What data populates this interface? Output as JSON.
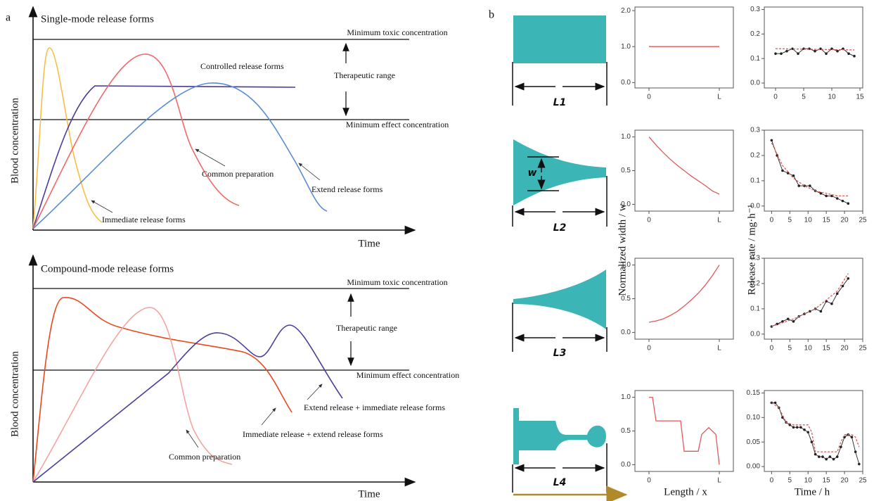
{
  "panel_a": {
    "label": "a",
    "top": {
      "title": "Single-mode release forms",
      "toxic": "Minimum toxic concentration",
      "range": "Therapeutic range",
      "effect": "Minimum effect concentration",
      "labels": [
        "Controlled release forms",
        "Common preparation",
        "Extend release forms",
        "Immediate release forms"
      ],
      "y_label": "Blood concentration",
      "x_label": "Time"
    },
    "bottom": {
      "title": "Compound-mode release forms",
      "toxic": "Minimum toxic concentration",
      "range": "Therapeutic range",
      "effect": "Minimum effect concentration",
      "labels": [
        "Extend release + immediate release forms",
        "Immediate release + extend release forms",
        "Common preparation"
      ],
      "y_label": "Blood concentration",
      "x_label": "Time"
    }
  },
  "panel_b": {
    "label": "b",
    "shapes": [
      "L1",
      "L2",
      "L3",
      "L4"
    ],
    "w_label": "w",
    "y_label_left": "Normalized width / w",
    "y_label_right": "Release rate / mg·h⁻¹",
    "x_label_left": "Length / x",
    "x_label_right": "Time / h"
  },
  "chart_data": [
    {
      "type": "line",
      "x": [
        0,
        1
      ],
      "values": [
        1.0,
        1.0
      ],
      "color": "#e05a5a",
      "xlim": [
        -0.2,
        1.2
      ],
      "ylim": [
        -0.15,
        2.1
      ],
      "xticks": [
        0,
        {
          "value": 1,
          "label": "L"
        }
      ],
      "yticks": [
        {
          "value": 0,
          "label": "0.0"
        },
        {
          "value": 1,
          "label": "1.0"
        },
        {
          "value": 2,
          "label": "2.0"
        }
      ]
    },
    {
      "type": "line",
      "xlim": [
        -2,
        15.5
      ],
      "ylim": [
        -0.02,
        0.31
      ],
      "xticks": [
        0,
        5,
        10,
        15
      ],
      "yticks": [
        {
          "value": 0,
          "label": "0.0"
        },
        0.1,
        0.2,
        0.3
      ],
      "series": [
        {
          "color": "#222222",
          "markers": true,
          "x": [
            0,
            1,
            2,
            3,
            4,
            5,
            6,
            7,
            8,
            9,
            10,
            11,
            12,
            13,
            14
          ],
          "values": [
            0.12,
            0.12,
            0.13,
            0.14,
            0.12,
            0.14,
            0.14,
            0.13,
            0.14,
            0.12,
            0.14,
            0.13,
            0.14,
            0.12,
            0.11
          ]
        },
        {
          "color": "#e05a5a",
          "dashed": true,
          "x": [
            0,
            14
          ],
          "values": [
            0.14,
            0.135
          ]
        }
      ]
    },
    {
      "type": "line",
      "x": [
        0,
        0.1,
        0.2,
        0.3,
        0.4,
        0.5,
        0.6,
        0.7,
        0.8,
        0.9,
        1
      ],
      "values": [
        1.0,
        0.88,
        0.77,
        0.67,
        0.58,
        0.5,
        0.42,
        0.35,
        0.28,
        0.2,
        0.15
      ],
      "color": "#e05a5a",
      "xlim": [
        -0.2,
        1.2
      ],
      "ylim": [
        -0.1,
        1.1
      ],
      "xticks": [
        0,
        {
          "value": 1,
          "label": "L"
        }
      ],
      "yticks": [
        {
          "value": 0,
          "label": "0.0"
        },
        0.5,
        {
          "value": 1,
          "label": "1.0"
        }
      ]
    },
    {
      "type": "line",
      "xlim": [
        -2,
        25
      ],
      "ylim": [
        -0.02,
        0.3
      ],
      "xticks": [
        0,
        5,
        10,
        15,
        20,
        25
      ],
      "yticks": [
        {
          "value": 0,
          "label": "0.0"
        },
        0.1,
        0.2,
        0.3
      ],
      "series": [
        {
          "color": "#222222",
          "markers": true,
          "x": [
            0,
            1.5,
            3,
            4.5,
            6,
            7.5,
            9,
            10.5,
            12,
            13.5,
            15,
            16.5,
            18,
            19.5,
            21
          ],
          "values": [
            0.26,
            0.2,
            0.14,
            0.13,
            0.12,
            0.08,
            0.08,
            0.08,
            0.06,
            0.05,
            0.04,
            0.04,
            0.03,
            0.02,
            0.01
          ]
        },
        {
          "color": "#e05a5a",
          "dashed": true,
          "x": [
            0,
            3,
            6,
            9,
            12,
            15,
            18,
            21
          ],
          "values": [
            0.25,
            0.16,
            0.11,
            0.08,
            0.06,
            0.05,
            0.04,
            0.04
          ]
        }
      ]
    },
    {
      "type": "line",
      "x": [
        0,
        0.1,
        0.2,
        0.3,
        0.4,
        0.5,
        0.6,
        0.7,
        0.8,
        0.9,
        1
      ],
      "values": [
        0.15,
        0.17,
        0.2,
        0.25,
        0.31,
        0.39,
        0.48,
        0.58,
        0.7,
        0.84,
        1.0
      ],
      "color": "#e05a5a",
      "xlim": [
        -0.2,
        1.2
      ],
      "ylim": [
        -0.1,
        1.1
      ],
      "xticks": [
        0,
        {
          "value": 1,
          "label": "L"
        }
      ],
      "yticks": [
        {
          "value": 0,
          "label": "0.0"
        },
        0.5,
        {
          "value": 1,
          "label": "1.0"
        }
      ]
    },
    {
      "type": "line",
      "xlim": [
        -2,
        25
      ],
      "ylim": [
        -0.02,
        0.3
      ],
      "xticks": [
        0,
        5,
        10,
        15,
        20,
        25
      ],
      "yticks": [
        {
          "value": 0,
          "label": "0.0"
        },
        0.1,
        0.2,
        0.3
      ],
      "series": [
        {
          "color": "#222222",
          "markers": true,
          "x": [
            0,
            1.5,
            3,
            4.5,
            6,
            7.5,
            9,
            10.5,
            12,
            13.5,
            15,
            16.5,
            18,
            19.5,
            21
          ],
          "values": [
            0.03,
            0.04,
            0.05,
            0.06,
            0.05,
            0.07,
            0.08,
            0.09,
            0.1,
            0.09,
            0.13,
            0.12,
            0.16,
            0.19,
            0.22
          ]
        },
        {
          "color": "#e05a5a",
          "dashed": true,
          "x": [
            0,
            6,
            12,
            18,
            21
          ],
          "values": [
            0.03,
            0.06,
            0.1,
            0.17,
            0.24
          ]
        }
      ]
    },
    {
      "type": "line",
      "x": [
        0,
        0.05,
        0.1,
        0.45,
        0.5,
        0.7,
        0.75,
        0.85,
        0.95,
        1
      ],
      "values": [
        1.0,
        1.0,
        0.65,
        0.65,
        0.2,
        0.2,
        0.45,
        0.55,
        0.45,
        0.0
      ],
      "color": "#e05a5a",
      "xlim": [
        -0.2,
        1.2
      ],
      "ylim": [
        -0.1,
        1.1
      ],
      "xticks": [
        0,
        {
          "value": 1,
          "label": "L"
        }
      ],
      "yticks": [
        {
          "value": 0,
          "label": "0.0"
        },
        0.5,
        {
          "value": 1,
          "label": "1.0"
        }
      ]
    },
    {
      "type": "line",
      "xlim": [
        -2,
        25
      ],
      "ylim": [
        -0.01,
        0.155
      ],
      "xticks": [
        0,
        5,
        10,
        15,
        20,
        25
      ],
      "yticks": [
        {
          "value": 0,
          "label": "0.00"
        },
        0.05,
        {
          "value": 0.1,
          "label": "0.10"
        },
        0.15
      ],
      "series": [
        {
          "color": "#222222",
          "markers": true,
          "x": [
            0,
            1,
            2,
            3,
            4,
            5,
            6,
            7,
            8,
            9,
            10,
            11,
            12,
            13,
            14,
            15,
            16,
            17,
            18,
            19,
            20,
            21,
            22,
            23,
            24
          ],
          "values": [
            0.13,
            0.13,
            0.12,
            0.1,
            0.09,
            0.085,
            0.08,
            0.08,
            0.08,
            0.075,
            0.07,
            0.05,
            0.025,
            0.02,
            0.02,
            0.015,
            0.02,
            0.015,
            0.02,
            0.04,
            0.06,
            0.065,
            0.06,
            0.03,
            0.005
          ]
        },
        {
          "color": "#e05a5a",
          "dashed": true,
          "x": [
            0,
            2,
            4,
            6,
            10,
            11,
            12,
            18,
            19,
            20,
            22,
            23,
            24
          ],
          "values": [
            0.13,
            0.12,
            0.09,
            0.085,
            0.085,
            0.07,
            0.03,
            0.03,
            0.05,
            0.065,
            0.065,
            0.06,
            0.04
          ]
        }
      ]
    }
  ]
}
